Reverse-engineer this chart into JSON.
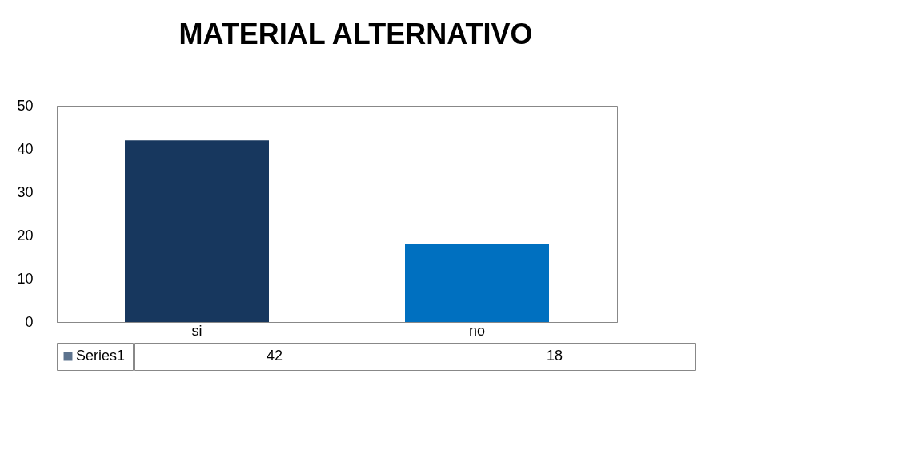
{
  "chart_data": {
    "type": "bar",
    "title": "MATERIAL ALTERNATIVO",
    "categories": [
      "si",
      "no"
    ],
    "series": [
      {
        "name": "Series1",
        "color": "#17375e",
        "colors": [
          "#17375e",
          "#0070c0"
        ],
        "values": [
          42,
          18
        ]
      }
    ],
    "ylim": [
      0,
      50
    ],
    "yticks": [
      0,
      10,
      20,
      30,
      40,
      50
    ],
    "grid": false,
    "legend": "bottom",
    "data_labels": true
  }
}
